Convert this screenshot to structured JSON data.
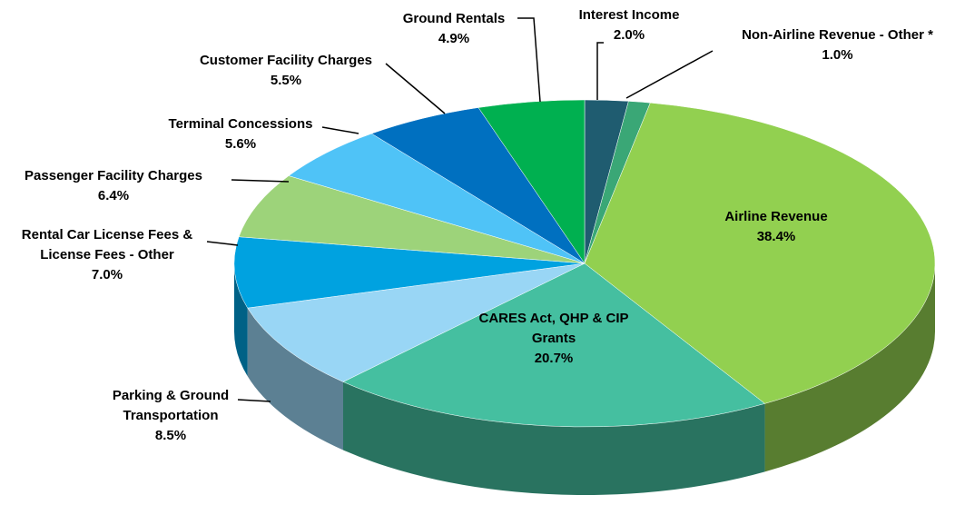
{
  "chart_data": {
    "type": "pie3d",
    "categories": [
      "Interest Income",
      "Non-Airline Revenue - Other *",
      "Airline Revenue",
      "CARES Act, QHP & CIP Grants",
      "Parking & Ground Transportation",
      "Rental Car License Fees & License Fees - Other",
      "Passenger Facility Charges",
      "Terminal Concessions",
      "Customer Facility Charges",
      "Ground Rentals"
    ],
    "values": [
      2.0,
      1.0,
      38.4,
      20.7,
      8.5,
      7.0,
      6.4,
      5.6,
      5.5,
      4.9
    ],
    "value_labels": [
      "2.0%",
      "1.0%",
      "38.4%",
      "20.7%",
      "8.5%",
      "7.0%",
      "6.4%",
      "5.6%",
      "5.5%",
      "4.9%"
    ],
    "colors": [
      "#1f5c70",
      "#3aa776",
      "#92d050",
      "#45bfa0",
      "#99d6f5",
      "#00a2e0",
      "#9dd37a",
      "#4fc3f7",
      "#0070c0",
      "#00b050"
    ]
  }
}
